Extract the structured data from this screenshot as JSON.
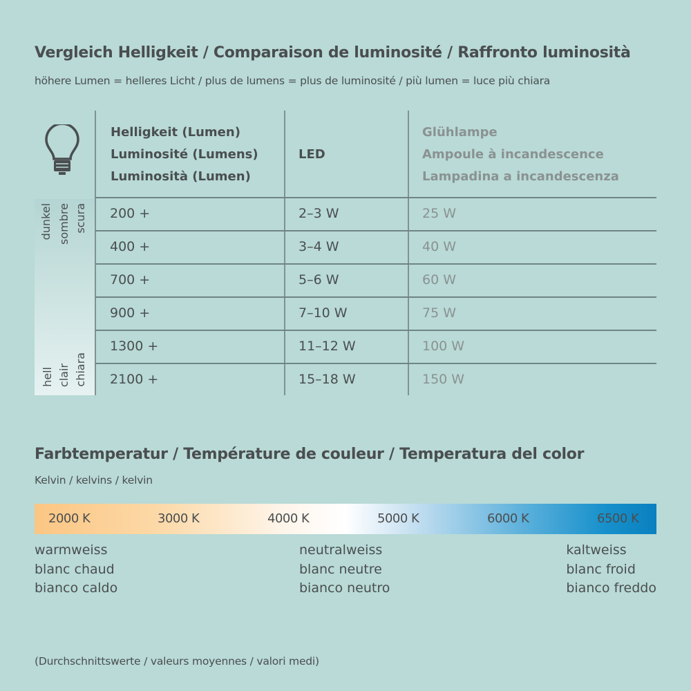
{
  "brightness": {
    "title": "Vergleich Helligkeit / Comparaison de luminosité / Raffronto luminosità",
    "subtitle": "höhere Lumen = helleres Licht / plus de lumens = plus de luminosité / più lumen = luce più chiara",
    "icon": "light-bulb-icon",
    "headers": {
      "lumen": [
        "Helligkeit (Lumen)",
        "Luminosité (Lumens)",
        "Luminosità (Lumen)"
      ],
      "led": "LED",
      "incandescent": [
        "Glühlampe",
        "Ampoule à incandescence",
        "Lampadina a incandescenza"
      ]
    },
    "scale_dark": [
      "dunkel",
      "sombre",
      "scura"
    ],
    "scale_bright": [
      "hell",
      "clair",
      "chiara"
    ],
    "rows": [
      {
        "lumen": "200 +",
        "led": "2–3 W",
        "incandescent": "25 W"
      },
      {
        "lumen": "400 +",
        "led": "3–4 W",
        "incandescent": "40 W"
      },
      {
        "lumen": "700 +",
        "led": "5–6 W",
        "incandescent": "60 W"
      },
      {
        "lumen": "900 +",
        "led": "7–10 W",
        "incandescent": "75 W"
      },
      {
        "lumen": "1300 +",
        "led": "11–12 W",
        "incandescent": "100 W"
      },
      {
        "lumen": "2100 +",
        "led": "15–18 W",
        "incandescent": "150 W"
      }
    ]
  },
  "color_temperature": {
    "title": "Farbtemperatur / Température de couleur / Temperatura del color",
    "subtitle": "Kelvin / kelvins / kelvin",
    "ticks": [
      "2000 K",
      "3000 K",
      "4000 K",
      "5000 K",
      "6000 K",
      "6500 K"
    ],
    "gradient_colors": [
      "#fbc683",
      "#ffffff",
      "#0b80c0"
    ],
    "warm": [
      "warmweiss",
      "blanc chaud",
      "bianco caldo"
    ],
    "neutral": [
      "neutralweiss",
      "blanc neutre",
      "bianco neutro"
    ],
    "cold": [
      "kaltweiss",
      "blanc froid",
      "bianco freddo"
    ]
  },
  "footnote": "(Durchschnittswerte / valeurs moyennes / valori medi)"
}
